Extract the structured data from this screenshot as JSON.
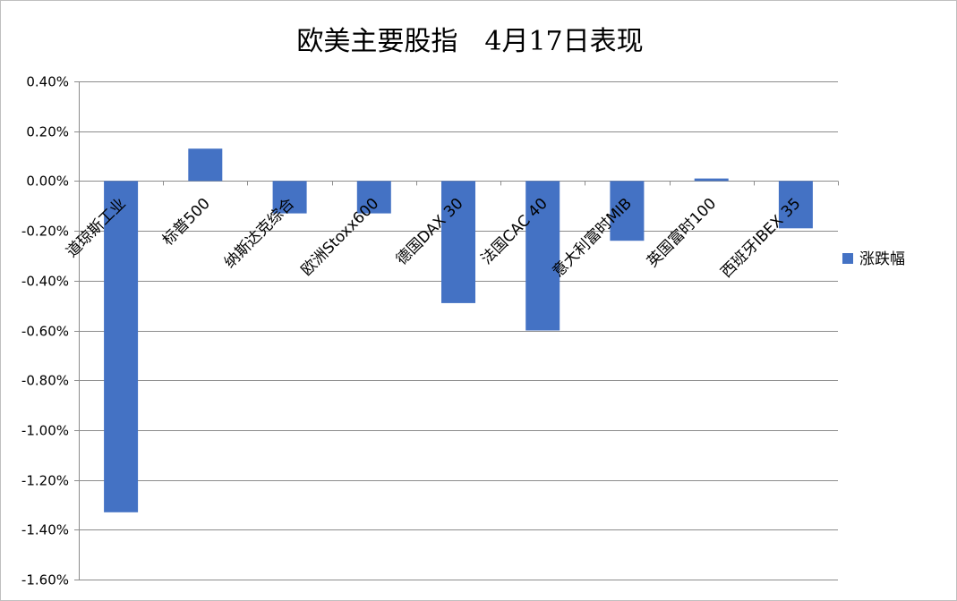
{
  "chart_data": {
    "type": "bar",
    "title": "欧美主要股指　4月17日表现",
    "xlabel": "",
    "ylabel": "",
    "ylim": [
      -1.6,
      0.4
    ],
    "y_unit": "%",
    "y_tick_labels": [
      "0.40%",
      "0.20%",
      "0.00%",
      "-0.20%",
      "-0.40%",
      "-0.60%",
      "-0.80%",
      "-1.00%",
      "-1.20%",
      "-1.40%",
      "-1.60%"
    ],
    "categories": [
      "道琼斯工业",
      "标普500",
      "纳斯达克综合",
      "欧洲Stoxx600",
      "德国DAX 30",
      "法国CAC 40",
      "意大利富时MIB",
      "英国富时100",
      "西班牙IBEX 35"
    ],
    "series": [
      {
        "name": "涨跌幅",
        "color": "#4472c4",
        "values": [
          -1.33,
          0.13,
          -0.13,
          -0.13,
          -0.49,
          -0.6,
          -0.24,
          0.01,
          -0.19
        ]
      }
    ],
    "grid": true,
    "legend_position": "right"
  }
}
